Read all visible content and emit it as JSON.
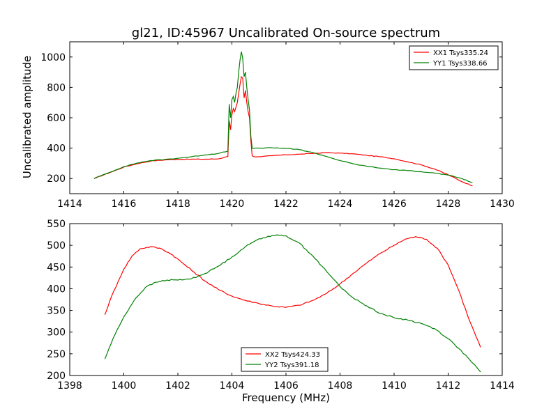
{
  "figure": {
    "background": "#ffffff"
  },
  "chart_data": [
    {
      "type": "line",
      "title": "gl21, ID:45967 Uncalibrated On-source spectrum",
      "xlabel": "",
      "ylabel": "Uncalibrated amplitude",
      "xlim": [
        1414,
        1430
      ],
      "ylim": [
        100,
        1100
      ],
      "xticks": [
        1414,
        1416,
        1418,
        1420,
        1422,
        1424,
        1426,
        1428,
        1430
      ],
      "yticks": [
        200,
        400,
        600,
        800,
        1000
      ],
      "legend_position": "upper right",
      "series": [
        {
          "name": "XX1 Tsys335.24",
          "color": "#ff0000",
          "x": [
            1414.9,
            1415.5,
            1416,
            1416.5,
            1417,
            1417.5,
            1418,
            1418.5,
            1419,
            1419.5,
            1419.85,
            1419.9,
            1419.95,
            1420.0,
            1420.05,
            1420.1,
            1420.15,
            1420.2,
            1420.25,
            1420.3,
            1420.35,
            1420.4,
            1420.45,
            1420.5,
            1420.55,
            1420.6,
            1420.65,
            1420.7,
            1420.75,
            1420.8,
            1421,
            1421.5,
            1422,
            1422.5,
            1423,
            1423.5,
            1424,
            1424.5,
            1425,
            1425.5,
            1426,
            1426.5,
            1427,
            1427.5,
            1428,
            1428.5,
            1428.9
          ],
          "values": [
            200,
            240,
            275,
            298,
            315,
            322,
            326,
            327,
            327,
            329,
            345,
            580,
            520,
            620,
            660,
            640,
            670,
            700,
            760,
            820,
            870,
            860,
            730,
            780,
            700,
            640,
            600,
            450,
            350,
            344,
            343,
            350,
            356,
            360,
            365,
            370,
            367,
            362,
            352,
            343,
            330,
            310,
            290,
            262,
            225,
            180,
            152
          ]
        },
        {
          "name": "YY1 Tsys338.66",
          "color": "#008000",
          "x": [
            1414.9,
            1415.5,
            1416,
            1416.5,
            1417,
            1417.5,
            1418,
            1418.5,
            1419,
            1419.5,
            1419.85,
            1419.9,
            1419.95,
            1420.0,
            1420.05,
            1420.1,
            1420.15,
            1420.2,
            1420.25,
            1420.3,
            1420.35,
            1420.4,
            1420.45,
            1420.5,
            1420.55,
            1420.6,
            1420.65,
            1420.7,
            1420.75,
            1420.8,
            1421,
            1421.5,
            1422,
            1422.5,
            1423,
            1423.5,
            1424,
            1424.5,
            1425,
            1425.5,
            1426,
            1426.5,
            1427,
            1427.5,
            1428,
            1428.5,
            1428.9
          ],
          "values": [
            200,
            242,
            278,
            302,
            318,
            325,
            333,
            343,
            355,
            365,
            380,
            690,
            600,
            720,
            740,
            700,
            760,
            800,
            900,
            980,
            1035,
            990,
            870,
            900,
            800,
            720,
            650,
            480,
            400,
            398,
            400,
            402,
            398,
            390,
            370,
            345,
            318,
            296,
            280,
            268,
            258,
            252,
            245,
            236,
            222,
            200,
            172
          ]
        }
      ]
    },
    {
      "type": "line",
      "title": "",
      "xlabel": "Frequency (MHz)",
      "ylabel": "",
      "xlim": [
        1398,
        1414
      ],
      "ylim": [
        200,
        550
      ],
      "xticks": [
        1398,
        1400,
        1402,
        1404,
        1406,
        1408,
        1410,
        1412,
        1414
      ],
      "yticks": [
        200,
        250,
        300,
        350,
        400,
        450,
        500,
        550
      ],
      "legend_position": "lower center",
      "series": [
        {
          "name": "XX2 Tsys424.33",
          "color": "#ff0000",
          "x": [
            1399.3,
            1399.5,
            1399.8,
            1400,
            1400.3,
            1400.6,
            1401,
            1401.4,
            1401.8,
            1402.2,
            1402.6,
            1403,
            1403.5,
            1404,
            1404.5,
            1405,
            1405.5,
            1406,
            1406.5,
            1407,
            1407.5,
            1408,
            1408.5,
            1409,
            1409.5,
            1410,
            1410.4,
            1410.8,
            1411.2,
            1411.6,
            1412,
            1412.4,
            1412.8,
            1413.2
          ],
          "values": [
            340,
            375,
            418,
            445,
            475,
            492,
            497,
            492,
            478,
            458,
            438,
            418,
            398,
            383,
            373,
            366,
            360,
            357,
            362,
            373,
            389,
            411,
            436,
            460,
            482,
            500,
            514,
            520,
            514,
            493,
            455,
            395,
            325,
            265
          ]
        },
        {
          "name": "YY2 Tsys391.18",
          "color": "#008000",
          "x": [
            1399.3,
            1399.6,
            1400,
            1400.4,
            1400.8,
            1401.2,
            1401.6,
            1402,
            1402.5,
            1403,
            1403.5,
            1404,
            1404.5,
            1405,
            1405.5,
            1406,
            1406.5,
            1407,
            1407.5,
            1408,
            1408.5,
            1409,
            1409.5,
            1410,
            1410.5,
            1411,
            1411.5,
            1412,
            1412.4,
            1412.8,
            1413.2
          ],
          "values": [
            238,
            285,
            335,
            375,
            403,
            415,
            420,
            420,
            423,
            435,
            452,
            473,
            497,
            515,
            523,
            522,
            505,
            475,
            440,
            405,
            378,
            360,
            343,
            333,
            328,
            320,
            308,
            285,
            262,
            236,
            208
          ]
        }
      ]
    }
  ]
}
